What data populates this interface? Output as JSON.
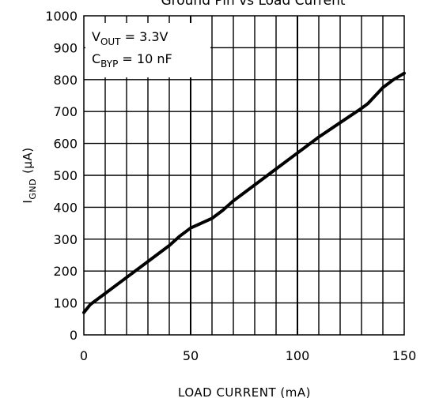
{
  "chart_data": {
    "type": "line",
    "title": "Ground Pin vs Load Current",
    "xlabel": "LOAD CURRENT (mA)",
    "ylabel_main": "I",
    "ylabel_sub": "GND",
    "ylabel_unit": "(μA)",
    "xlim": [
      0,
      150
    ],
    "ylim": [
      0,
      1000
    ],
    "x_ticks": [
      "0",
      "50",
      "100",
      "150"
    ],
    "y_ticks": [
      "0",
      "100",
      "200",
      "300",
      "400",
      "500",
      "600",
      "700",
      "800",
      "900",
      "1000"
    ],
    "grid": true,
    "annotation": {
      "line1_main": "V",
      "line1_sub": "OUT",
      "line1_rest": " = 3.3V",
      "line2_main": "C",
      "line2_sub": "BYP",
      "line2_rest": " = 10 nF"
    },
    "series": [
      {
        "x": [
          0,
          3,
          10,
          20,
          30,
          40,
          45,
          50,
          55,
          60,
          65,
          70,
          80,
          90,
          100,
          110,
          120,
          130,
          133,
          140,
          145,
          150
        ],
        "y": [
          70,
          95,
          130,
          180,
          230,
          280,
          310,
          335,
          350,
          365,
          390,
          420,
          470,
          520,
          570,
          620,
          665,
          710,
          725,
          775,
          800,
          820
        ]
      }
    ]
  }
}
